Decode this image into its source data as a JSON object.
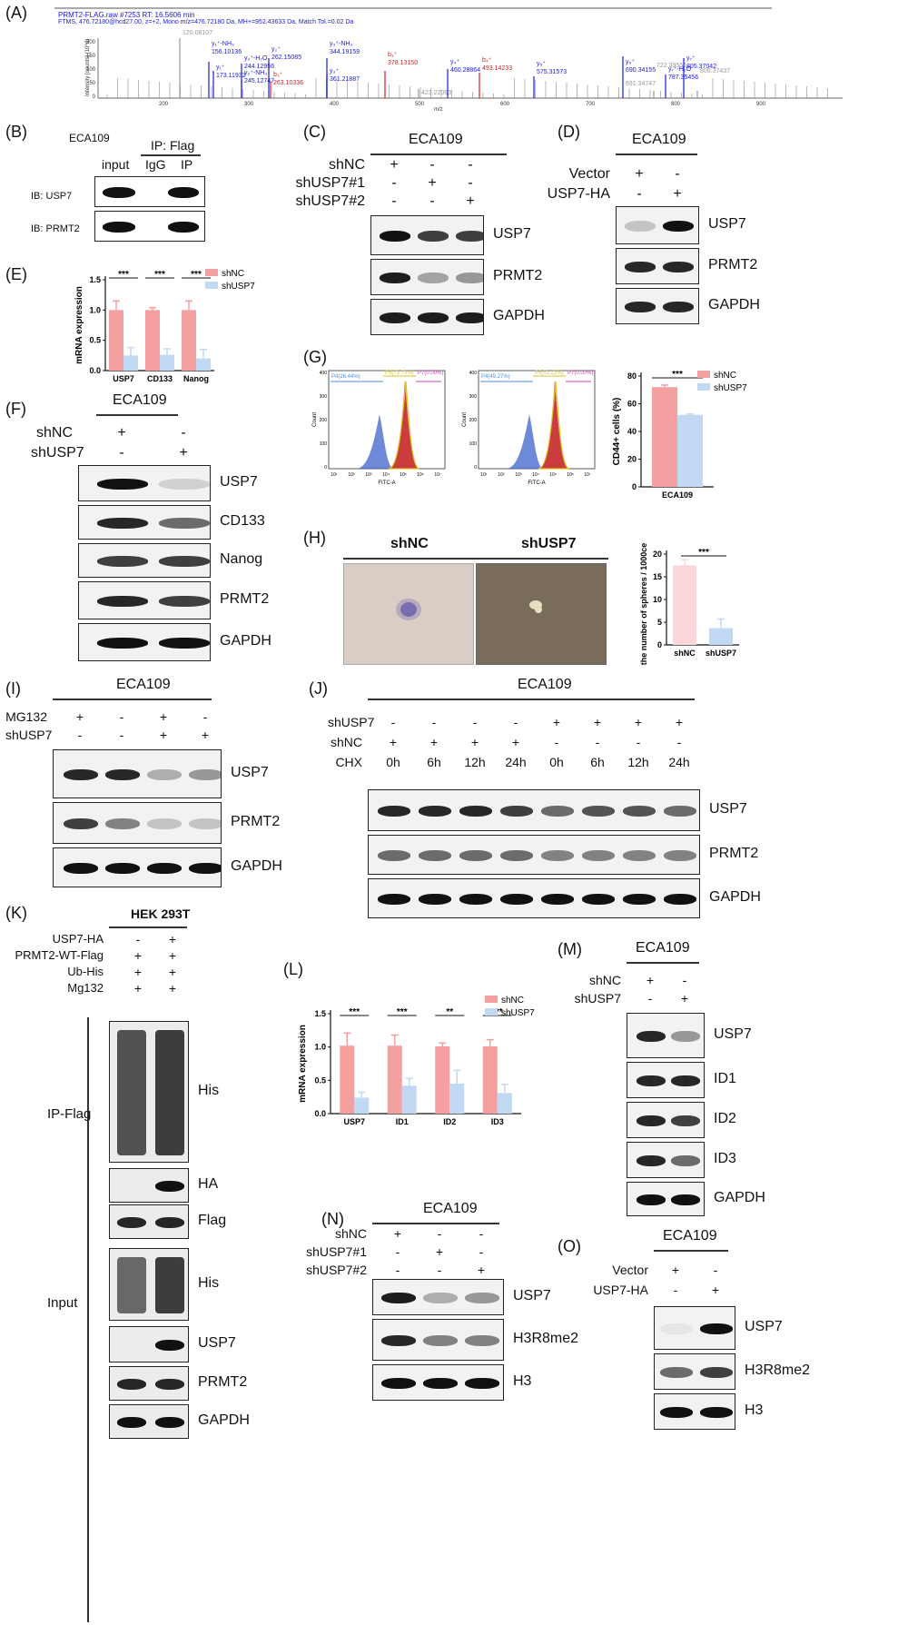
{
  "panels": {
    "A": "(A)",
    "B": "(B)",
    "C": "(C)",
    "D": "(D)",
    "E": "(E)",
    "F": "(F)",
    "G": "(G)",
    "H": "(H)",
    "I": "(I)",
    "J": "(J)",
    "K": "(K)",
    "L": "(L)",
    "M": "(M)",
    "N": "(N)",
    "O": "(O)"
  },
  "A": {
    "header1": "PRMT2-FLAG.raw #7253 RT: 16.5606 min",
    "header2": "FTMS, 476.72180@hcd27.00, z=+2, Mono m/z=476.72180 Da, MH+=952.43633 Da, Match Tol.=0.02 Da",
    "ylabel": "Intensity [counts] (10^3)",
    "xlabel": "m/z",
    "yticks": [
      "200",
      "150",
      "100",
      "50",
      "0"
    ],
    "xticks": [
      "200",
      "300",
      "400",
      "500",
      "600",
      "700",
      "800",
      "900"
    ],
    "peaks": [
      {
        "t1": "120.08107",
        "t2": "",
        "c": "#999"
      },
      {
        "t1": "y₁⁺-NH₃",
        "t2": "156.10136",
        "c": "#1a1ae0"
      },
      {
        "t1": "y₁⁺",
        "t2": "173.11932",
        "c": "#1a1ae0"
      },
      {
        "t1": "y₂⁺-H₂O",
        "t2": "244.12956",
        "c": "#1a1ae0"
      },
      {
        "t1": "y₂⁺-NH₃",
        "t2": "245.12747",
        "c": "#1a1ae0"
      },
      {
        "t1": "y₂⁺",
        "t2": "262.15085",
        "c": "#1a1ae0"
      },
      {
        "t1": "b₃⁺",
        "t2": "263.10336",
        "c": "#e01a1a"
      },
      {
        "t1": "y₃⁺-NH₃",
        "t2": "344.19159",
        "c": "#1a1ae0"
      },
      {
        "t1": "y₃⁺",
        "t2": "361.21887",
        "c": "#1a1ae0"
      },
      {
        "t1": "b₃⁺",
        "t2": "378.13150",
        "c": "#e01a1a"
      },
      {
        "t1": "",
        "t2": "423.22063",
        "c": "#999"
      },
      {
        "t1": "y₄⁺",
        "t2": "460.28864",
        "c": "#1a1ae0"
      },
      {
        "t1": "b₄⁺",
        "t2": "493.14233",
        "c": "#e01a1a"
      },
      {
        "t1": "y₅⁺",
        "t2": "575.31573",
        "c": "#1a1ae0"
      },
      {
        "t1": "",
        "t2": "691.34747",
        "c": "#999"
      },
      {
        "t1": "y₆⁺",
        "t2": "690.34155",
        "c": "#1a1ae0"
      },
      {
        "t1": "",
        "t2": "722.39551",
        "c": "#999"
      },
      {
        "t1": "y₇⁺-H₂O",
        "t2": "787.35456",
        "c": "#1a1ae0"
      },
      {
        "t1": "y₇⁺",
        "t2": "805.37042",
        "c": "#1a1ae0"
      },
      {
        "t1": "",
        "t2": "806.37437",
        "c": "#999"
      }
    ]
  },
  "B": {
    "cell": "ECA109",
    "ip": "IP: Flag",
    "cols": [
      "input",
      "IgG",
      "IP"
    ],
    "rows": [
      "IB: USP7",
      "IB: PRMT2"
    ]
  },
  "C": {
    "cell": "ECA109",
    "conds": [
      {
        "label": "shNC",
        "v": [
          "+",
          "-",
          "-"
        ]
      },
      {
        "label": "shUSP7#1",
        "v": [
          "-",
          "+",
          "-"
        ]
      },
      {
        "label": "shUSP7#2",
        "v": [
          "-",
          "-",
          "+"
        ]
      }
    ],
    "blots": [
      "USP7",
      "PRMT2",
      "GAPDH"
    ]
  },
  "D": {
    "cell": "ECA109",
    "conds": [
      {
        "label": "Vector",
        "v": [
          "+",
          "-"
        ]
      },
      {
        "label": "USP7-HA",
        "v": [
          "-",
          "+"
        ]
      }
    ],
    "blots": [
      "USP7",
      "PRMT2",
      "GAPDH"
    ]
  },
  "E": {
    "ylabel": "mRNA expression",
    "legend": [
      "shNC",
      "shUSP7"
    ],
    "sig": [
      "***",
      "***",
      "***"
    ],
    "yticks": [
      "1.5",
      "1.0",
      "0.5",
      "0.0"
    ]
  },
  "F": {
    "cell": "ECA109",
    "conds": [
      {
        "label": "shNC",
        "v": [
          "+",
          "-"
        ]
      },
      {
        "label": "shUSP7",
        "v": [
          "-",
          "+"
        ]
      }
    ],
    "blots": [
      "USP7",
      "CD133",
      "Nanog",
      "PRMT2",
      "GAPDH"
    ]
  },
  "G": {
    "flow": [
      {
        "p4": "P4(26.44%)",
        "p5": "P5(73.73%)",
        "p7": "P7(0.00%)"
      },
      {
        "p4": "P4(49.27%)",
        "p5": "P5(51.22%)",
        "p7": "P7(0.00%)"
      }
    ],
    "ylabel": "Count",
    "xlabel": "FITC-A",
    "xticks": [
      "10¹",
      "10²",
      "10³",
      "10⁴",
      "10⁵",
      "10⁶",
      "10⁷"
    ],
    "barYlabel": "CD44+ cells (%)",
    "barX": "ECA109",
    "legend": [
      "shNC",
      "shUSP7"
    ],
    "sig": "***",
    "yticks": [
      "80",
      "60",
      "40",
      "20",
      "0"
    ]
  },
  "H": {
    "cols": [
      "shNC",
      "shUSP7"
    ],
    "ylabel": "the number of spheres / 1000cells",
    "sig": "***",
    "yticks": [
      "20",
      "15",
      "10",
      "5",
      "0"
    ]
  },
  "I": {
    "cell": "ECA109",
    "conds": [
      {
        "label": "MG132",
        "v": [
          "+",
          "-",
          "+",
          "-"
        ]
      },
      {
        "label": "shUSP7",
        "v": [
          "-",
          "-",
          "+",
          "+"
        ]
      }
    ],
    "blots": [
      "USP7",
      "PRMT2",
      "GAPDH"
    ]
  },
  "J": {
    "cell": "ECA109",
    "conds": [
      {
        "label": "shUSP7",
        "v": [
          "-",
          "-",
          "-",
          "-",
          "+",
          "+",
          "+",
          "+"
        ]
      },
      {
        "label": "shNC",
        "v": [
          "+",
          "+",
          "+",
          "+",
          "-",
          "-",
          "-",
          "-"
        ]
      },
      {
        "label": "CHX",
        "v": [
          "0h",
          "6h",
          "12h",
          "24h",
          "0h",
          "6h",
          "12h",
          "24h"
        ]
      }
    ],
    "blots": [
      "USP7",
      "PRMT2",
      "GAPDH"
    ]
  },
  "K": {
    "cell": "HEK 293T",
    "conds": [
      {
        "label": "USP7-HA",
        "v": [
          "-",
          "+"
        ]
      },
      {
        "label": "PRMT2-WT-Flag",
        "v": [
          "+",
          "+"
        ]
      },
      {
        "label": "Ub-His",
        "v": [
          "+",
          "+"
        ]
      },
      {
        "label": "Mg132",
        "v": [
          "+",
          "+"
        ]
      }
    ],
    "ipLabel": "IP-Flag",
    "inputLabel": "Input",
    "blots": [
      "His",
      "HA",
      "Flag",
      "His",
      "USP7",
      "PRMT2",
      "GAPDH"
    ]
  },
  "L": {
    "ylabel": "mRNA expression",
    "legend": [
      "shNC",
      "shUSP7"
    ],
    "sig": [
      "***",
      "***",
      "**",
      "***"
    ],
    "yticks": [
      "1.5",
      "1.0",
      "0.5",
      "0.0"
    ]
  },
  "M": {
    "cell": "ECA109",
    "conds": [
      {
        "label": "shNC",
        "v": [
          "+",
          "-"
        ]
      },
      {
        "label": "shUSP7",
        "v": [
          "-",
          "+"
        ]
      }
    ],
    "blots": [
      "USP7",
      "ID1",
      "ID2",
      "ID3",
      "GAPDH"
    ]
  },
  "N": {
    "cell": "ECA109",
    "conds": [
      {
        "label": "shNC",
        "v": [
          "+",
          "-",
          "-"
        ]
      },
      {
        "label": "shUSP7#1",
        "v": [
          "-",
          "+",
          "-"
        ]
      },
      {
        "label": "shUSP7#2",
        "v": [
          "-",
          "-",
          "+"
        ]
      }
    ],
    "blots": [
      "USP7",
      "H3R8me2",
      "H3"
    ]
  },
  "O": {
    "cell": "ECA109",
    "conds": [
      {
        "label": "Vector",
        "v": [
          "+",
          "-"
        ]
      },
      {
        "label": "USP7-HA",
        "v": [
          "-",
          "+"
        ]
      }
    ],
    "blots": [
      "USP7",
      "H3R8me2",
      "H3"
    ]
  },
  "chart_data": [
    {
      "type": "bar",
      "panel": "E",
      "categories": [
        "USP7",
        "CD133",
        "Nanog"
      ],
      "series": [
        {
          "name": "shNC",
          "values": [
            1.0,
            1.0,
            1.0
          ],
          "err": [
            0.15,
            0.04,
            0.15
          ]
        },
        {
          "name": "shUSP7",
          "values": [
            0.25,
            0.26,
            0.2
          ],
          "err": [
            0.13,
            0.1,
            0.15
          ]
        }
      ],
      "ylabel": "mRNA expression",
      "ylim": [
        0,
        1.5
      ],
      "colors": [
        "#f4a0a0",
        "#c2d9f3"
      ]
    },
    {
      "type": "bar",
      "panel": "G",
      "categories": [
        "ECA109"
      ],
      "series": [
        {
          "name": "shNC",
          "values": [
            72
          ],
          "err": [
            1.5
          ]
        },
        {
          "name": "shUSP7",
          "values": [
            52
          ],
          "err": [
            0.6
          ]
        }
      ],
      "ylabel": "CD44+ cells (%)",
      "ylim": [
        0,
        80
      ],
      "colors": [
        "#f4a0a0",
        "#c2d9f3"
      ]
    },
    {
      "type": "bar",
      "panel": "H",
      "categories": [
        "shNC",
        "shUSP7"
      ],
      "series": [
        {
          "name": "",
          "values": [
            17.5,
            3.7
          ],
          "err": [
            1.3,
            2.0
          ]
        }
      ],
      "ylabel": "the number of spheres / 1000cells",
      "ylim": [
        0,
        20
      ],
      "colors": [
        "#fcd6d9",
        "#c2d9f3"
      ]
    },
    {
      "type": "bar",
      "panel": "L",
      "categories": [
        "USP7",
        "ID1",
        "ID2",
        "ID3"
      ],
      "series": [
        {
          "name": "shNC",
          "values": [
            1.02,
            1.02,
            1.01,
            1.01
          ],
          "err": [
            0.19,
            0.16,
            0.05,
            0.1
          ]
        },
        {
          "name": "shUSP7",
          "values": [
            0.24,
            0.42,
            0.45,
            0.31
          ],
          "err": [
            0.08,
            0.11,
            0.2,
            0.13
          ]
        }
      ],
      "ylabel": "mRNA expression",
      "ylim": [
        0,
        1.5
      ],
      "colors": [
        "#f4a0a0",
        "#c2d9f3"
      ]
    }
  ]
}
